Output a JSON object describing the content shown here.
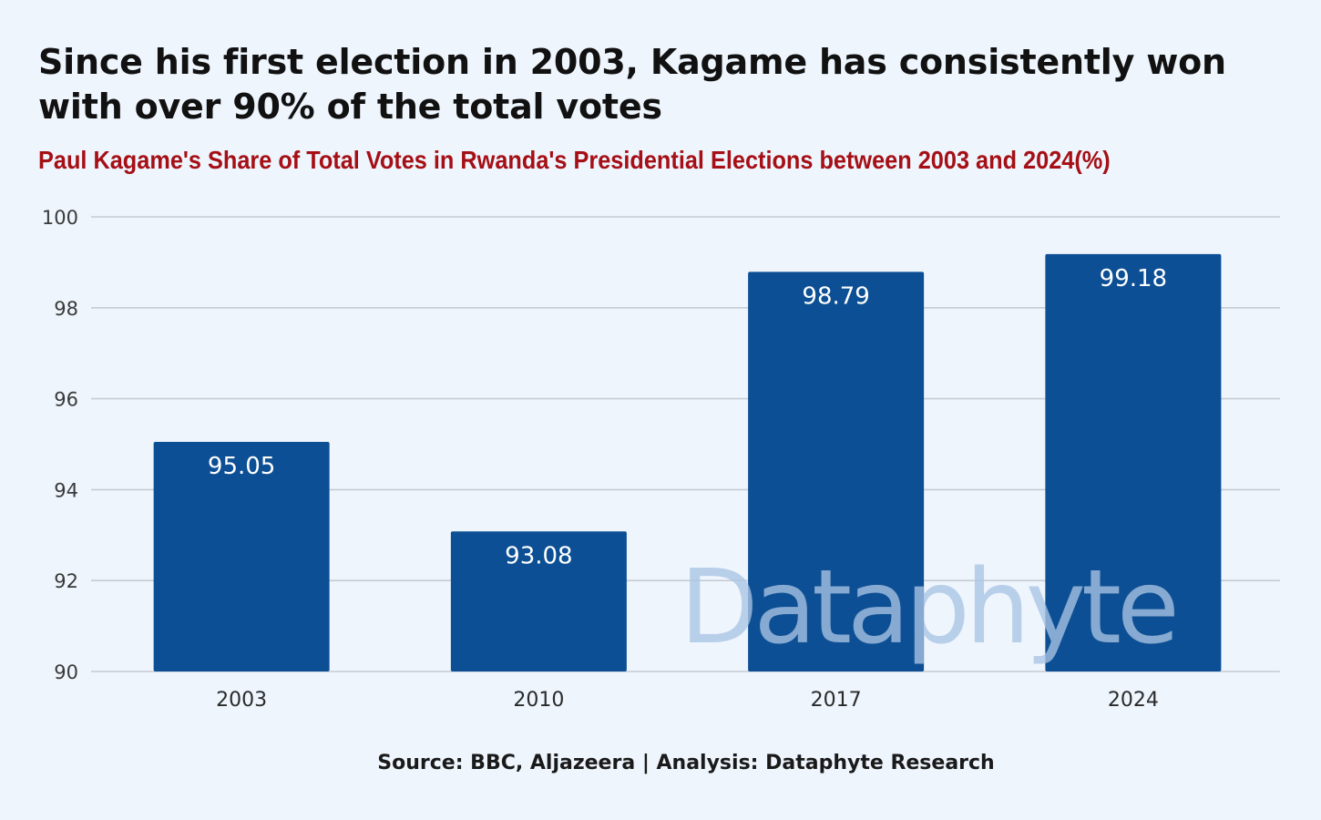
{
  "title": "Since his first election in 2003, Kagame has consistently won with over 90% of the total votes",
  "subtitle": "Paul Kagame's Share of Total Votes in Rwanda's Presidential Elections between 2003 and 2024(%)",
  "source": "Source: BBC, Aljazeera | Analysis: Dataphyte Research",
  "watermark": "Dataphyte",
  "colors": {
    "background": "#eef5fd",
    "bar": "#0d4f94",
    "grid": "#c7ccd4",
    "title": "#111111",
    "subtitle": "#a50f15",
    "watermark": "#a9c4e4"
  },
  "chart_data": {
    "type": "bar",
    "categories": [
      "2003",
      "2010",
      "2017",
      "2024"
    ],
    "values": [
      95.05,
      93.08,
      98.79,
      99.18
    ],
    "data_labels": [
      "95.05",
      "93.08",
      "98.79",
      "99.18"
    ],
    "ylim": [
      90,
      100
    ],
    "yticks": [
      "90",
      "92",
      "94",
      "96",
      "98",
      "100"
    ],
    "xlabel": "",
    "ylabel": "",
    "grid": true,
    "legend": "none"
  }
}
